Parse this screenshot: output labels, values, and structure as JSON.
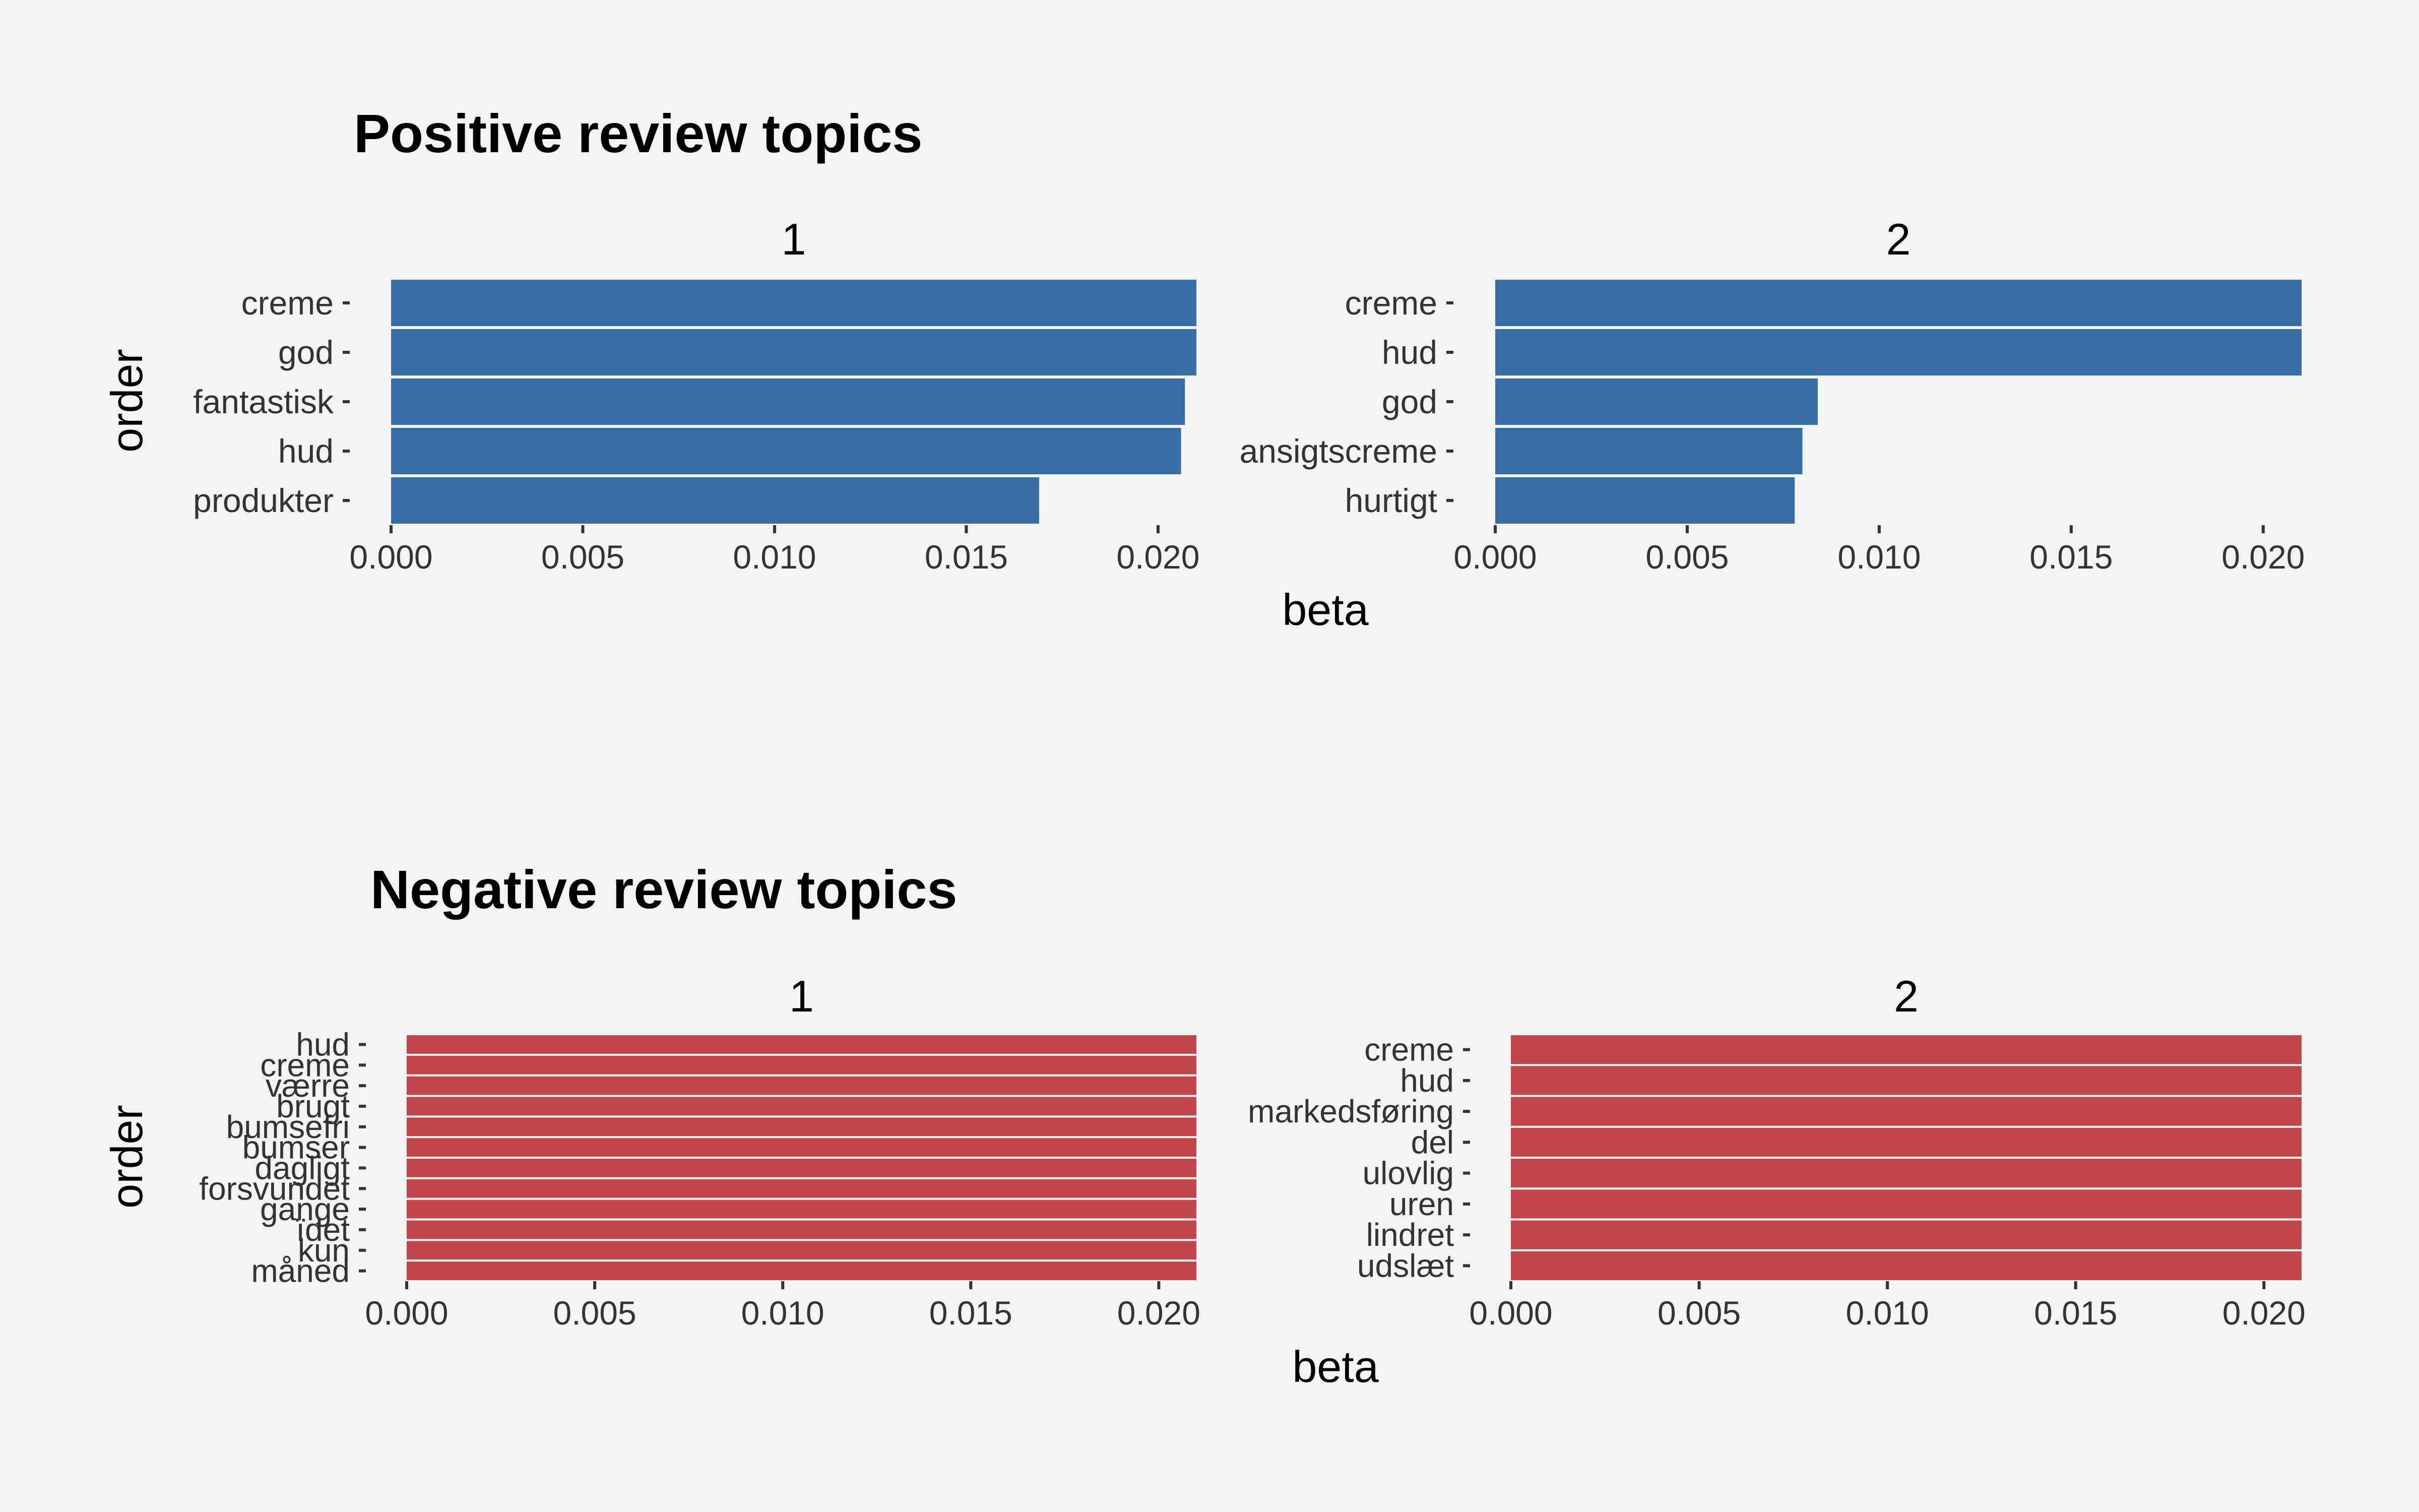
{
  "chart_data": [
    {
      "type": "bar",
      "orientation": "horizontal",
      "title": "Positive review topics",
      "xlabel": "beta",
      "ylabel": "order",
      "xlim": [
        0,
        0.021
      ],
      "xticks": [
        "0.000",
        "0.005",
        "0.010",
        "0.015",
        "0.020"
      ],
      "color": "#386ea6",
      "grid": false,
      "panels": [
        {
          "name": "1",
          "categories": [
            "creme",
            "god",
            "fantastisk",
            "hud",
            "produkter"
          ],
          "values": [
            0.021,
            0.021,
            0.0207,
            0.0206,
            0.0169
          ]
        },
        {
          "name": "2",
          "categories": [
            "creme",
            "hud",
            "god",
            "ansigtscreme",
            "hurtigt"
          ],
          "values": [
            0.021,
            0.021,
            0.0084,
            0.008,
            0.0078
          ]
        }
      ]
    },
    {
      "type": "bar",
      "orientation": "horizontal",
      "title": "Negative review topics",
      "xlabel": "beta",
      "ylabel": "order",
      "xlim": [
        0,
        0.021
      ],
      "xticks": [
        "0.000",
        "0.005",
        "0.010",
        "0.015",
        "0.020"
      ],
      "color": "#c0464a",
      "grid": false,
      "panels": [
        {
          "name": "1",
          "categories": [
            "hud",
            "creme",
            "værre",
            "brugt",
            "bumsefri",
            "bumser",
            "dagligt",
            "forsvundet",
            "gange",
            "ïdet",
            "kun",
            "måned"
          ],
          "values": [
            0.021,
            0.021,
            0.021,
            0.021,
            0.021,
            0.021,
            0.021,
            0.021,
            0.021,
            0.021,
            0.021,
            0.021
          ]
        },
        {
          "name": "2",
          "categories": [
            "creme",
            "hud",
            "markedsføring",
            "del",
            "ulovlig",
            "uren",
            "lindret",
            "udslæt"
          ],
          "values": [
            0.021,
            0.021,
            0.021,
            0.021,
            0.021,
            0.021,
            0.021,
            0.021
          ]
        }
      ]
    }
  ]
}
